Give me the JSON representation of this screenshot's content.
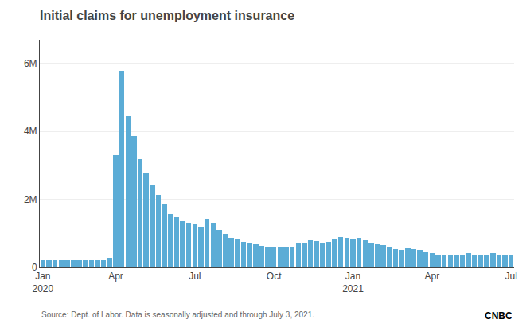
{
  "chart_data": {
    "type": "bar",
    "title": "Initial claims for unemployment insurance",
    "annotations": [
      "Source: Dept. of Labor. Data is seasonally adjusted and through July 3, 2021.",
      "CNBC"
    ],
    "color": "#5BACD6",
    "categories": [
      "Jan\n2020",
      null,
      null,
      null,
      null,
      null,
      null,
      null,
      null,
      null,
      null,
      null,
      "Apr",
      null,
      null,
      null,
      null,
      null,
      null,
      null,
      null,
      null,
      null,
      null,
      null,
      "Jul",
      null,
      null,
      null,
      null,
      null,
      null,
      null,
      null,
      null,
      null,
      null,
      null,
      "Oct",
      null,
      null,
      null,
      null,
      null,
      null,
      null,
      null,
      null,
      null,
      null,
      null,
      "Jan\n2021",
      null,
      null,
      null,
      null,
      null,
      null,
      null,
      null,
      null,
      null,
      null,
      null,
      "Apr",
      null,
      null,
      null,
      null,
      null,
      null,
      null,
      null,
      null,
      null,
      null,
      null,
      "Jul"
    ],
    "values": [
      211000,
      211000,
      211000,
      211000,
      211000,
      211000,
      211000,
      211000,
      211000,
      211000,
      211000,
      282000,
      3307000,
      5790000,
      4443000,
      3867000,
      3176000,
      2771000,
      2438000,
      2126000,
      1878000,
      1566000,
      1480000,
      1370000,
      1307000,
      1270000,
      1186000,
      1434000,
      1310000,
      1104000,
      992000,
      860000,
      833000,
      751000,
      711000,
      672000,
      630000,
      606000,
      599000,
      591000,
      606000,
      612000,
      714000,
      711000,
      787000,
      779000,
      711000,
      742000,
      847000,
      888000,
      876000,
      841000,
      860000,
      790000,
      736000,
      684000,
      648000,
      594000,
      547000,
      523000,
      566000,
      549000,
      523000,
      444000,
      416000,
      376000,
      368000,
      362000,
      373000,
      385000,
      411000,
      360000,
      353000,
      376000,
      411000,
      373000,
      364000,
      350000
    ],
    "ylim": [
      0,
      6700000
    ],
    "yticks": [
      0,
      {
        "value": 2000000,
        "label": "2M"
      },
      {
        "value": 4000000,
        "label": "4M"
      },
      {
        "value": 6000000,
        "label": "6M"
      }
    ],
    "grid": true
  }
}
